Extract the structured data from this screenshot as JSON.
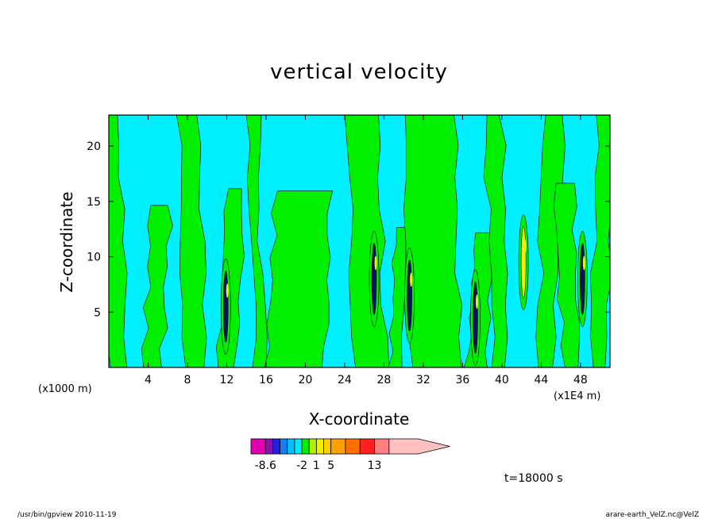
{
  "chart_data": {
    "type": "heatmap",
    "title": "vertical velocity",
    "xlabel": "X-coordinate",
    "ylabel": "Z-coordinate",
    "x_unit_note": "(x1000 m)",
    "x_scale_note": "(x1E4 m)",
    "x_ticks": [
      "4",
      "8",
      "12",
      "16",
      "20",
      "24",
      "28",
      "32",
      "36",
      "40",
      "44",
      "48"
    ],
    "x_tick_values": [
      4,
      8,
      12,
      16,
      20,
      24,
      28,
      32,
      36,
      40,
      44,
      48
    ],
    "y_ticks": [
      "5",
      "10",
      "15",
      "20"
    ],
    "y_tick_values": [
      5,
      10,
      15,
      20
    ],
    "xlim": [
      0,
      51
    ],
    "ylim": [
      0,
      22.8
    ],
    "time_label": "t=18000 s",
    "colorbar": {
      "labels": [
        "-8.6",
        "-2",
        "1",
        "5",
        "13"
      ],
      "label_positions": [
        1,
        6,
        8,
        10,
        13
      ],
      "colors": [
        "#e000b0",
        "#8a10b0",
        "#2020e0",
        "#1080ff",
        "#00c0ff",
        "#00e8ff",
        "#00f000",
        "#b0f000",
        "#f0f000",
        "#ffd000",
        "#ffa000",
        "#ff7000",
        "#ff2020",
        "#ff8080",
        "#ffc0c0"
      ],
      "cell_units": [
        2,
        1,
        1,
        1,
        1,
        1,
        1,
        1,
        1,
        1,
        2,
        2,
        2,
        2,
        4
      ],
      "extend": "right"
    },
    "field_colors": {
      "up": "#00f000",
      "down": "#00f0ff"
    },
    "updraft_bands": [
      {
        "x": 0.2,
        "x_end": 1.8,
        "z_top": 22.8
      },
      {
        "x": 3.5,
        "x_end": 5.4,
        "z_top": 14.5
      },
      {
        "x": 7.8,
        "x_end": 9.8,
        "z_top": 22.8
      },
      {
        "x": 11.2,
        "x_end": 13.0,
        "z_top": 16.0
      },
      {
        "x": 14.8,
        "x_end": 15.8,
        "z_top": 22.8
      },
      {
        "x": 16.2,
        "x_end": 21.8,
        "z_top": 15.8
      },
      {
        "x": 25.0,
        "x_end": 28.2,
        "z_top": 22.8
      },
      {
        "x": 28.6,
        "x_end": 30.0,
        "z_top": 12.5
      },
      {
        "x": 30.8,
        "x_end": 35.8,
        "z_top": 22.8
      },
      {
        "x": 36.4,
        "x_end": 38.2,
        "z_top": 12.0
      },
      {
        "x": 39.0,
        "x_end": 40.6,
        "z_top": 22.8
      },
      {
        "x": 43.6,
        "x_end": 45.4,
        "z_top": 22.8
      },
      {
        "x": 46.2,
        "x_end": 48.0,
        "z_top": 16.5
      },
      {
        "x": 49.0,
        "x_end": 50.8,
        "z_top": 22.8
      }
    ],
    "strong_cells": [
      {
        "x": 11.9,
        "z": 5.5,
        "kind": "down"
      },
      {
        "x": 27.0,
        "z": 8.0,
        "kind": "down"
      },
      {
        "x": 30.6,
        "z": 6.5,
        "kind": "down"
      },
      {
        "x": 37.3,
        "z": 4.5,
        "kind": "down"
      },
      {
        "x": 42.2,
        "z": 9.5,
        "kind": "up"
      },
      {
        "x": 48.2,
        "z": 8.0,
        "kind": "down"
      }
    ]
  },
  "footer": {
    "left": "/usr/bin/gpview   2010-11-19",
    "right": "arare-earth_VelZ.nc@VelZ"
  }
}
